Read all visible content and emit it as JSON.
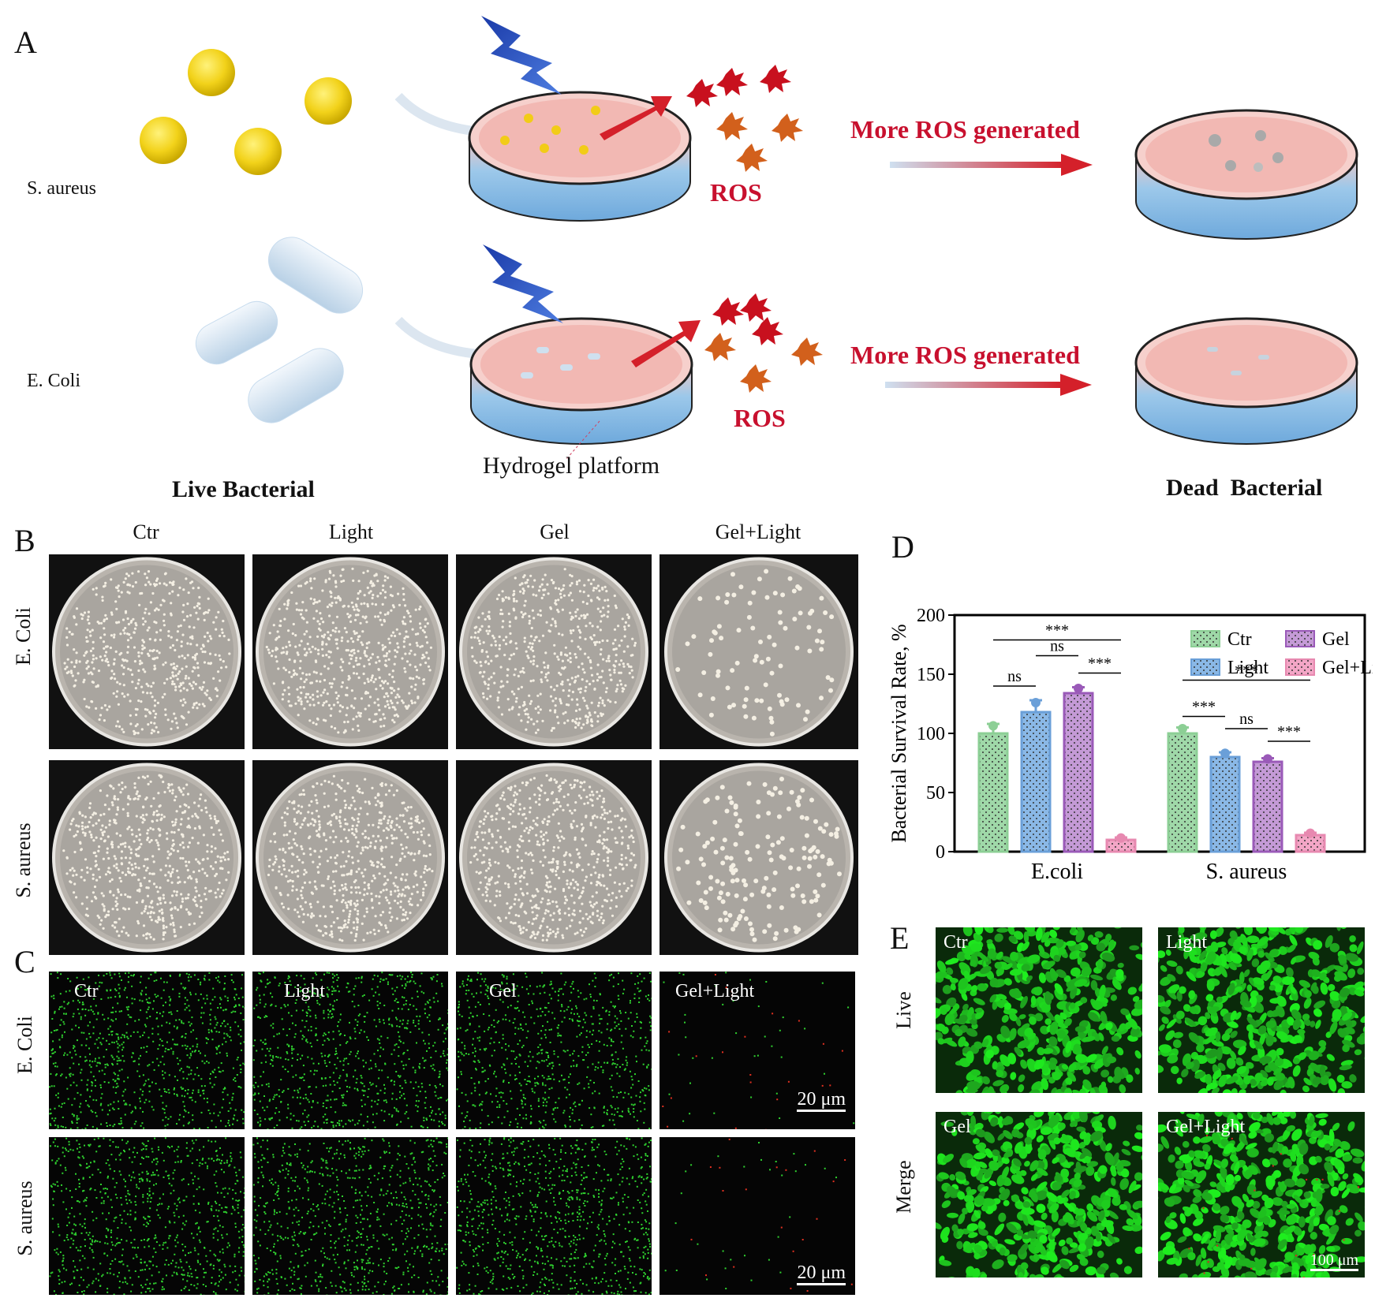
{
  "panelA": {
    "letter": "A",
    "row_saureus": "S. aureus",
    "row_ecoli": "E. Coli",
    "more_ros_1": "More ROS generated",
    "more_ros_2": "More ROS generated",
    "ros_1": "ROS",
    "ros_2": "ROS",
    "hydrogel": "Hydrogel platform",
    "live": "Live Bacterial",
    "dead": "Dead  Bacterial"
  },
  "panelB": {
    "letter": "B",
    "columns": [
      "Ctr",
      "Light",
      "Gel",
      "Gel+Light"
    ],
    "rows": [
      "E. Coli",
      "S. aureus"
    ]
  },
  "panelC": {
    "letter": "C",
    "columns": [
      "Ctr",
      "Light",
      "Gel",
      "Gel+Light"
    ],
    "rows": [
      "E. Coli",
      "S. aureus"
    ],
    "scale_1": "20 μm",
    "scale_2": "20 μm"
  },
  "panelD": {
    "letter": "D"
  },
  "panelE": {
    "letter": "E",
    "labels": [
      "Ctr",
      "Light",
      "Gel",
      "Gel+Light"
    ],
    "rows": [
      "Live",
      "Merge"
    ],
    "scale": "100 μm"
  },
  "colors": {
    "ctr": "#9fd8a8",
    "light": "#8ab8e6",
    "gel": "#c49ad6",
    "gel_light": "#f3a6c6",
    "ros_red": "#c8102e",
    "fluo_green": "#2fd12f"
  },
  "chart_data": {
    "type": "bar",
    "title": "",
    "xlabel": "",
    "ylabel": "Bacterial Survival Rate, %",
    "ylim": [
      0,
      200
    ],
    "yticks": [
      0,
      50,
      100,
      150,
      200
    ],
    "categories": [
      "E.coli",
      "S. aureus"
    ],
    "legend_position": "top-right",
    "series": [
      {
        "name": "Ctr",
        "values": [
          100,
          100
        ],
        "errors": [
          8,
          5
        ]
      },
      {
        "name": "Light",
        "values": [
          118,
          80
        ],
        "errors": [
          10,
          4
        ]
      },
      {
        "name": "Gel",
        "values": [
          134,
          76
        ],
        "errors": [
          5,
          3
        ]
      },
      {
        "name": "Gel+Light",
        "values": [
          10,
          14
        ],
        "errors": [
          2,
          2
        ]
      }
    ],
    "significance": [
      {
        "group": "E.coli",
        "from": "Ctr",
        "to": "Light",
        "label": "ns"
      },
      {
        "group": "E.coli",
        "from": "Light",
        "to": "Gel",
        "label": "ns"
      },
      {
        "group": "E.coli",
        "from": "Gel",
        "to": "Gel+Light",
        "label": "***"
      },
      {
        "group": "E.coli",
        "from": "Ctr",
        "to": "Gel+Light",
        "label": "***"
      },
      {
        "group": "S. aureus",
        "from": "Ctr",
        "to": "Light",
        "label": "***"
      },
      {
        "group": "S. aureus",
        "from": "Light",
        "to": "Gel",
        "label": "ns"
      },
      {
        "group": "S. aureus",
        "from": "Gel",
        "to": "Gel+Light",
        "label": "***"
      },
      {
        "group": "S. aureus",
        "from": "Ctr",
        "to": "Gel+Light",
        "label": "***"
      }
    ]
  }
}
